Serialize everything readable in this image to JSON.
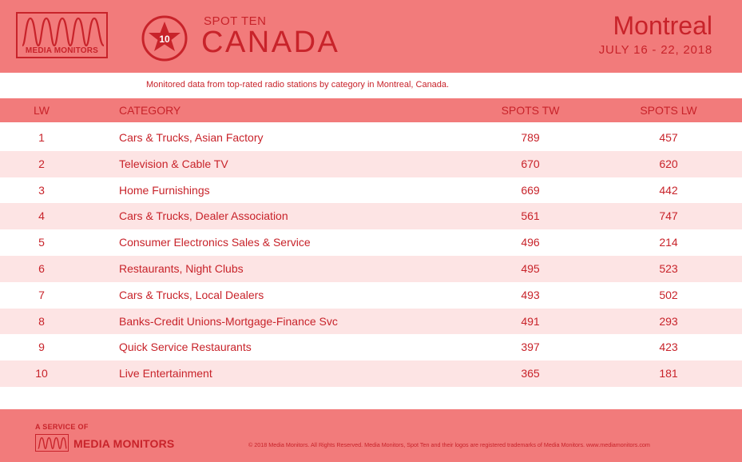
{
  "header": {
    "logo_text": "MEDIA MONITORS",
    "badge_number": "10",
    "spot_ten_label": "SPOT TEN",
    "country_title": "CANADA",
    "city_title": "Montreal",
    "date_range": "JULY 16 - 22, 2018"
  },
  "subtitle": "Monitored data from top-rated radio stations by category in Montreal, Canada.",
  "table": {
    "columns": [
      "LW",
      "CATEGORY",
      "SPOTS TW",
      "SPOTS LW"
    ],
    "rows": [
      {
        "lw": "1",
        "category": "Cars & Trucks, Asian Factory",
        "spots_tw": "789",
        "spots_lw": "457"
      },
      {
        "lw": "2",
        "category": "Television & Cable TV",
        "spots_tw": "670",
        "spots_lw": "620"
      },
      {
        "lw": "3",
        "category": "Home Furnishings",
        "spots_tw": "669",
        "spots_lw": "442"
      },
      {
        "lw": "4",
        "category": "Cars & Trucks, Dealer Association",
        "spots_tw": "561",
        "spots_lw": "747"
      },
      {
        "lw": "5",
        "category": "Consumer Electronics Sales & Service",
        "spots_tw": "496",
        "spots_lw": "214"
      },
      {
        "lw": "6",
        "category": "Restaurants, Night Clubs",
        "spots_tw": "495",
        "spots_lw": "523"
      },
      {
        "lw": "7",
        "category": "Cars & Trucks, Local Dealers",
        "spots_tw": "493",
        "spots_lw": "502"
      },
      {
        "lw": "8",
        "category": "Banks-Credit Unions-Mortgage-Finance Svc",
        "spots_tw": "491",
        "spots_lw": "293"
      },
      {
        "lw": "9",
        "category": "Quick Service Restaurants",
        "spots_tw": "397",
        "spots_lw": "423"
      },
      {
        "lw": "10",
        "category": "Live Entertainment",
        "spots_tw": "365",
        "spots_lw": "181"
      }
    ]
  },
  "footer": {
    "service_of": "A SERVICE OF",
    "brand": "MEDIA MONITORS",
    "copyright": "© 2018 Media Monitors.  All Rights Reserved. Media Monitors, Spot Ten and their logos are registered trademarks of Media Monitors. www.mediamonitors.com"
  },
  "colors": {
    "band": "#f27b7b",
    "text": "#c8232a",
    "alt_row": "#fde4e4"
  },
  "icons": {
    "logo": "mm-wave-icon",
    "badge": "star-ten-badge-icon"
  }
}
